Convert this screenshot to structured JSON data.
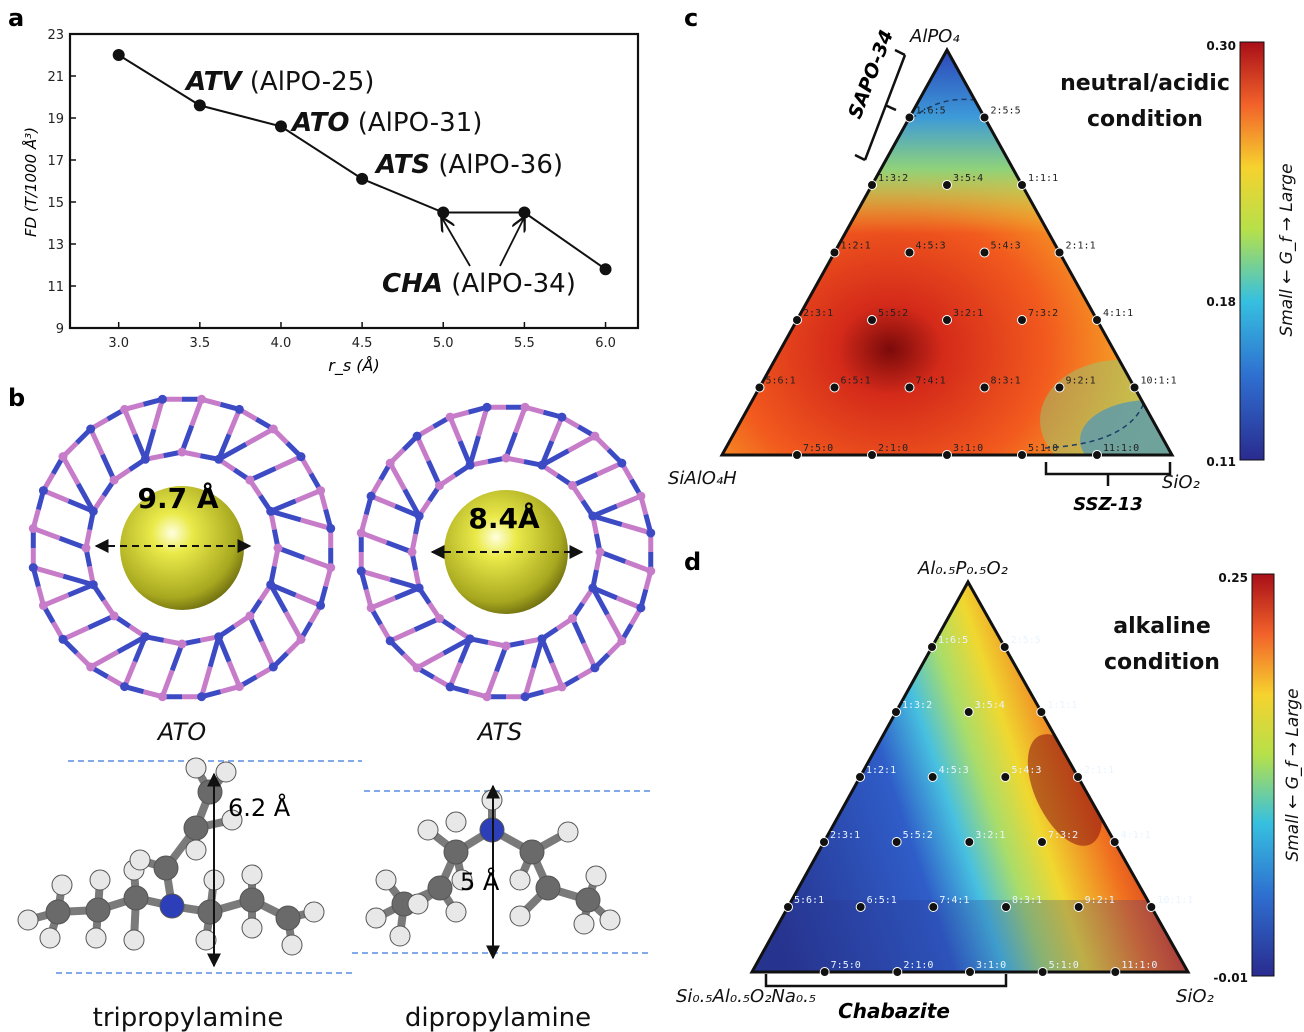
{
  "panels": {
    "a": "a",
    "b": "b",
    "c": "c",
    "d": "d"
  },
  "panel_a": {
    "ylabel": "FD (T/1000 Å³)",
    "xlabel": "r_s (Å)",
    "x_ticks": [
      "3.0",
      "3.5",
      "4.0",
      "4.5",
      "5.0",
      "5.5",
      "6.0"
    ],
    "y_ticks": [
      "9",
      "11",
      "13",
      "15",
      "17",
      "19",
      "21",
      "23"
    ],
    "annotations": [
      {
        "code": "ATV",
        "name": " (AlPO-25)"
      },
      {
        "code": "ATO",
        "name": " (AlPO-31)"
      },
      {
        "code": "ATS",
        "name": " (AlPO-36)"
      },
      {
        "code": "CHA",
        "name": " (AlPO-34)"
      }
    ]
  },
  "chart_data": {
    "type": "line",
    "x": [
      3.0,
      3.5,
      4.0,
      4.5,
      5.0,
      5.5,
      6.0
    ],
    "y": [
      22.0,
      19.6,
      18.6,
      16.1,
      14.5,
      14.5,
      11.8
    ],
    "xlabel": "r_s (Å)",
    "ylabel": "FD (T/1000 Å³)",
    "xlim": [
      2.7,
      6.2
    ],
    "ylim": [
      9,
      23
    ]
  },
  "panel_b": {
    "ato": {
      "label": "ATO",
      "diameter": "9.7 Å"
    },
    "ats": {
      "label": "ATS",
      "diameter": "8.4Å"
    },
    "mol1": {
      "name": "tripropylamine",
      "height": "6.2 Å"
    },
    "mol2": {
      "name": "dipropylamine",
      "height": "5 Å"
    }
  },
  "panel_c": {
    "top": "AlPO₄",
    "left": "SiAlO₄H",
    "right": "SiO₂",
    "condition_line1": "neutral/acidic",
    "condition_line2": "condition",
    "bracket_left": "SAPO-34",
    "bracket_bottom": "SSZ-13",
    "cb_max": "0.30",
    "cb_mid": "0.18",
    "cb_min": "0.11",
    "cb_label": "Small ← G_f → Large",
    "points": [
      "1:6:5",
      "2:5:5",
      "1:3:2",
      "3:5:4",
      "1:1:1",
      "1:2:1",
      "4:5:3",
      "5:4:3",
      "2:1:1",
      "2:3:1",
      "5:5:2",
      "3:2:1",
      "7:3:2",
      "4:1:1",
      "5:6:1",
      "6:5:1",
      "7:4:1",
      "8:3:1",
      "9:2:1",
      "10:1:1",
      "7:5:0",
      "2:1:0",
      "3:1:0",
      "5:1:0",
      "11:1:0"
    ]
  },
  "panel_d": {
    "top": "Al₀.₅P₀.₅O₂",
    "left": "Si₀.₅Al₀.₅O₂Na₀.₅",
    "right": "SiO₂",
    "condition_line1": "alkaline",
    "condition_line2": "condition",
    "bracket_bottom": "Chabazite",
    "cb_max": "0.25",
    "cb_min": "-0.01",
    "cb_label": "Small ← G_f → Large",
    "points": [
      "1:6:5",
      "2:5:5",
      "1:3:2",
      "3:5:4",
      "1:1:1",
      "1:2:1",
      "4:5:3",
      "5:4:3",
      "2:1:1",
      "2:3:1",
      "5:5:2",
      "3:2:1",
      "7:3:2",
      "4:1:1",
      "5:6:1",
      "6:5:1",
      "7:4:1",
      "8:3:1",
      "9:2:1",
      "10:1:1",
      "7:5:0",
      "2:1:0",
      "3:1:0",
      "5:1:0",
      "11:1:0"
    ]
  },
  "colors": {
    "pink": "#c77cc9",
    "blue": "#3c4bc4",
    "yellow": "#e4e43a",
    "dashed": "#4a8fd6"
  }
}
